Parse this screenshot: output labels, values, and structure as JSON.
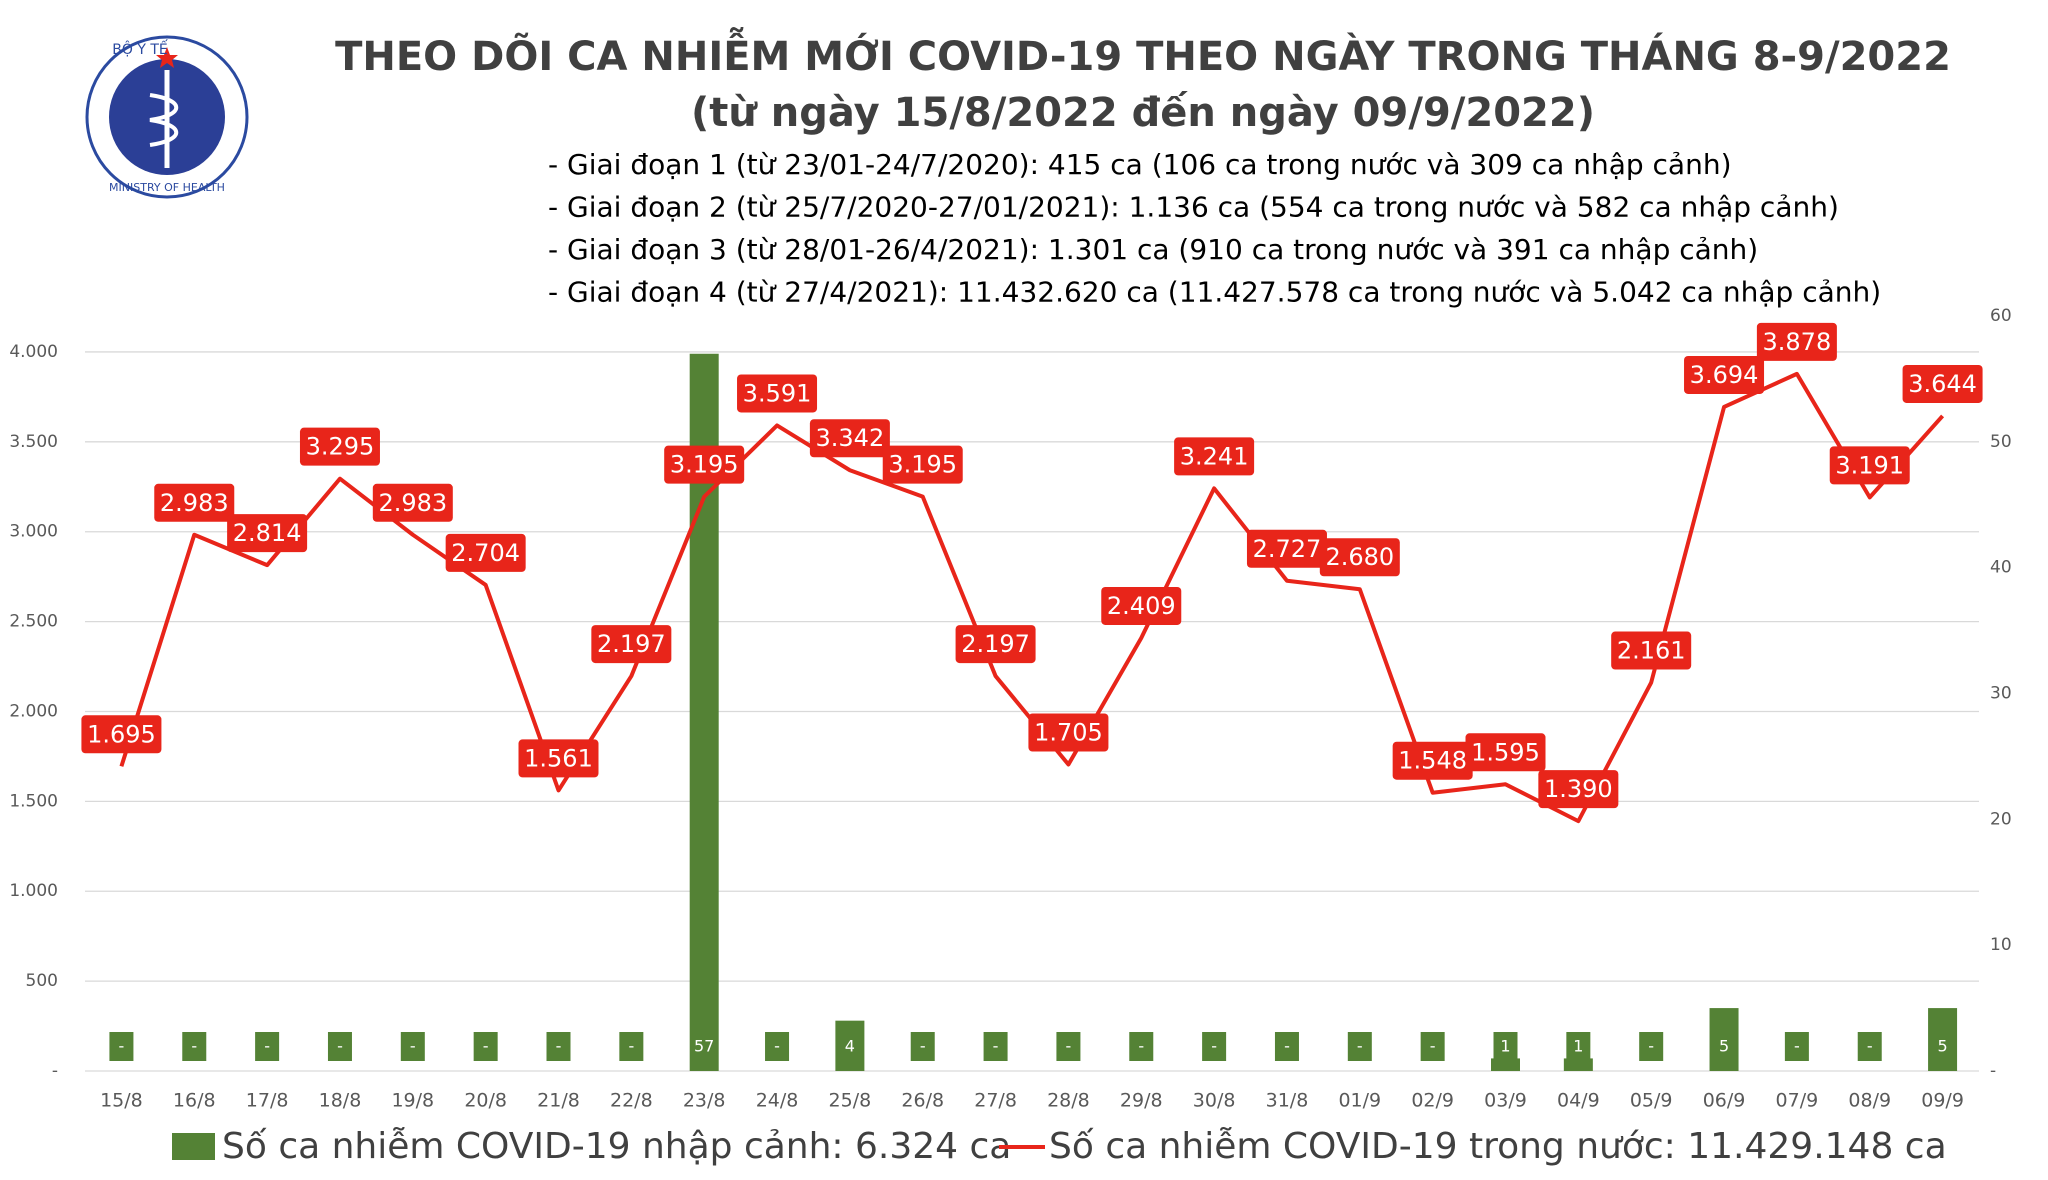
{
  "logo": {
    "top": "BỘ Y TẾ",
    "bottom": "MINISTRY OF HEALTH"
  },
  "chart_data": {
    "type": "combo",
    "title": "THEO DÕI CA NHIỄM MỚI COVID-19 THEO NGÀY TRONG THÁNG 8-9/2022",
    "subtitle": "(từ ngày 15/8/2022 đến ngày 09/9/2022)",
    "notes": [
      "- Giai đoạn 1 (từ 23/01-24/7/2020): 415 ca (106 ca trong nước và 309 ca nhập cảnh)",
      "- Giai đoạn 2 (từ 25/7/2020-27/01/2021): 1.136 ca (554 ca trong nước và 582 ca nhập cảnh)",
      "- Giai đoạn 3 (từ 28/01-26/4/2021): 1.301 ca (910 ca trong nước và 391 ca nhập cảnh)",
      "- Giai đoạn 4 (từ 27/4/2021): 11.432.620 ca (11.427.578 ca trong nước và 5.042 ca nhập cảnh)"
    ],
    "categories": [
      "15/8",
      "16/8",
      "17/8",
      "18/8",
      "19/8",
      "20/8",
      "21/8",
      "22/8",
      "23/8",
      "24/8",
      "25/8",
      "26/8",
      "27/8",
      "28/8",
      "29/8",
      "30/8",
      "31/8",
      "01/9",
      "02/9",
      "03/9",
      "04/9",
      "05/9",
      "06/9",
      "07/9",
      "08/9",
      "09/9"
    ],
    "series": [
      {
        "name": "Số ca nhiễm COVID-19 nhập cảnh: 6.324 ca",
        "type": "bar",
        "axis": "y2",
        "color": "#548235",
        "values": [
          0,
          0,
          0,
          0,
          0,
          0,
          0,
          0,
          57,
          0,
          4,
          0,
          0,
          0,
          0,
          0,
          0,
          0,
          0,
          1,
          1,
          0,
          5,
          0,
          0,
          5
        ],
        "value_labels": [
          "-",
          "-",
          "-",
          "-",
          "-",
          "-",
          "-",
          "-",
          "57",
          "-",
          "4",
          "-",
          "-",
          "-",
          "-",
          "-",
          "-",
          "-",
          "-",
          "1",
          "1",
          "-",
          "5",
          "-",
          "-",
          "5"
        ]
      },
      {
        "name": "Số ca nhiễm COVID-19 trong nước: 11.429.148 ca",
        "type": "line",
        "color": "#e8251a",
        "values": [
          1695,
          2983,
          2814,
          3295,
          2983,
          2704,
          1561,
          2197,
          3195,
          3591,
          3342,
          3195,
          2197,
          1705,
          2409,
          3241,
          2727,
          2680,
          1548,
          1595,
          1390,
          2161,
          3694,
          3878,
          3191,
          3644
        ],
        "value_labels": [
          "1.695",
          "2.983",
          "2.814",
          "3.295",
          "2.983",
          "2.704",
          "1.561",
          "2.197",
          "3.195",
          "3.591",
          "3.342",
          "3.195",
          "2.197",
          "1.705",
          "2.409",
          "3.241",
          "2.727",
          "2.680",
          "1.548",
          "1.595",
          "1.390",
          "2.161",
          "3.694",
          "3.878",
          "3.191",
          "3.644"
        ]
      }
    ],
    "ylim": [
      0,
      4200
    ],
    "yticks": [
      {
        "value": 0,
        "label": "-"
      },
      500,
      {
        "value": 1000,
        "label": "1.000"
      },
      {
        "value": 1500,
        "label": "1.500"
      },
      {
        "value": 2000,
        "label": "2.000"
      },
      {
        "value": 2500,
        "label": "2.500"
      },
      {
        "value": 3000,
        "label": "3.000"
      },
      {
        "value": 3500,
        "label": "3.500"
      },
      {
        "value": 4000,
        "label": "4.000"
      }
    ],
    "y2lim": [
      0,
      60
    ],
    "y2ticks": [
      {
        "value": 0,
        "label": "-"
      },
      10,
      20,
      30,
      40,
      50,
      60
    ],
    "grid": true
  }
}
